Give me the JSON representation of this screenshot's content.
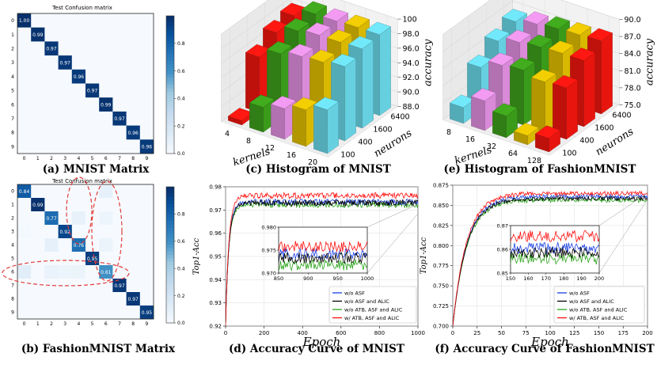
{
  "captions": {
    "a": "(a) MNIST Matrix",
    "b": "(b) FashionMNIST Matrix",
    "c": "(c) Histogram of MNIST",
    "d": "(d)  Accuracy Curve of  MNIST",
    "e": "(e) Histogram of FashionMNIST",
    "f": "(f)  Accuracy Curve of  FashionMNIST"
  },
  "colors": {
    "cm_high": "#08306b",
    "cm_low": "#f7fbff",
    "ellipse": "#e23a3a",
    "bar_red": "#e8150f",
    "bar_green": "#3a9a1a",
    "bar_pink": "#d98ad8",
    "bar_yellow": "#d9b800",
    "bar_cyan": "#66d0e0",
    "series_blue": "#1a3fe0",
    "series_black": "#000000",
    "series_green": "#2aa41a",
    "series_red": "#ff1010"
  },
  "chart_data": [
    {
      "id": "a",
      "type": "heatmap",
      "title": "Test Confusion matrix",
      "categories": [
        "0",
        "1",
        "2",
        "3",
        "4",
        "5",
        "6",
        "7",
        "8",
        "9"
      ],
      "diagonal": [
        1.0,
        0.99,
        0.97,
        0.97,
        0.96,
        0.97,
        0.99,
        0.97,
        0.96,
        0.96
      ],
      "diagonal_labels": [
        "1.00",
        "0.99",
        "0.97",
        "0.97",
        "0.96",
        "0.97",
        "0.99",
        "0.97",
        "0.96",
        "0.96"
      ],
      "colorbar_ticks": [
        "0.0",
        "0.2",
        "0.4",
        "0.6",
        "0.8"
      ],
      "colorbar_range": [
        0,
        1.0
      ]
    },
    {
      "id": "b",
      "type": "heatmap",
      "title": "Test Confusion matrix",
      "categories": [
        "0",
        "1",
        "2",
        "3",
        "4",
        "5",
        "6",
        "7",
        "8",
        "9"
      ],
      "diagonal": [
        0.84,
        0.99,
        0.77,
        0.92,
        0.76,
        0.95,
        0.61,
        0.97,
        0.97,
        0.95
      ],
      "diagonal_labels": [
        "0.84",
        "0.99",
        "0.77",
        "0.92",
        "0.76",
        "0.95",
        "0.61",
        "0.97",
        "0.97",
        "0.95"
      ],
      "off_diagonal": [
        {
          "row": 6,
          "col": 0,
          "value": 0.13
        },
        {
          "row": 6,
          "col": 2,
          "value": 0.08
        },
        {
          "row": 6,
          "col": 3,
          "value": 0.06
        },
        {
          "row": 6,
          "col": 4,
          "value": 0.07
        },
        {
          "row": 4,
          "col": 2,
          "value": 0.1
        },
        {
          "row": 2,
          "col": 4,
          "value": 0.09
        },
        {
          "row": 0,
          "col": 6,
          "value": 0.1
        },
        {
          "row": 3,
          "col": 0,
          "value": 0.03
        },
        {
          "row": 2,
          "col": 6,
          "value": 0.06
        },
        {
          "row": 4,
          "col": 6,
          "value": 0.07
        }
      ],
      "colorbar_ticks": [
        "0.0",
        "0.2",
        "0.4",
        "0.6",
        "0.8"
      ],
      "colorbar_range": [
        0,
        1.0
      ]
    },
    {
      "id": "c",
      "type": "bar3d",
      "xlabel": "kernels",
      "ylabel": "neurons",
      "zlabel": "accuracy",
      "kernels": [
        "4",
        "8",
        "12",
        "16",
        "20"
      ],
      "neurons": [
        "100",
        "400",
        "1600",
        "6400"
      ],
      "z_ticks": [
        "88.0",
        "90.0",
        "92.0",
        "94.0",
        "96.0",
        "98.0",
        "100"
      ],
      "z_range": [
        88,
        100
      ],
      "series": [
        {
          "name": "4",
          "color": "red",
          "values": [
            88.6,
            95.6,
            97.2,
            97.8
          ]
        },
        {
          "name": "8",
          "color": "green",
          "values": [
            91.4,
            97.0,
            98.4,
            99.0
          ]
        },
        {
          "name": "12",
          "color": "pink",
          "values": [
            92.2,
            97.6,
            98.8,
            99.0
          ]
        },
        {
          "name": "16",
          "color": "yellow",
          "values": [
            93.0,
            97.8,
            98.8,
            99.1
          ]
        },
        {
          "name": "20",
          "color": "cyan",
          "values": [
            94.0,
            98.2,
            98.9,
            99.1
          ]
        }
      ]
    },
    {
      "id": "d",
      "type": "line",
      "xlabel": "Epoch",
      "ylabel": "Top1-Acc",
      "xlim": [
        0,
        1000
      ],
      "ylim": [
        0.92,
        0.98
      ],
      "x_ticks": [
        "0",
        "200",
        "400",
        "600",
        "800",
        "1000"
      ],
      "y_ticks": [
        "0.92",
        "0.93",
        "0.94",
        "0.95",
        "0.96",
        "0.97",
        "0.98"
      ],
      "legend": [
        "w/o ASF",
        "w/o ASF and ALIC",
        "w/o ATB, ASF and ALIC",
        "w/ ATB, ASF and ALIC"
      ],
      "series_plateau": [
        0.9735,
        0.973,
        0.9722,
        0.9762
      ],
      "inset": {
        "xlim": [
          850,
          1000
        ],
        "ylim": [
          0.97,
          0.98
        ],
        "x_ticks": [
          "850",
          "900",
          "950",
          "1000"
        ],
        "y_ticks": [
          "0.970",
          "0.975",
          "0.980"
        ],
        "series_levels": [
          0.9742,
          0.9733,
          0.9718,
          0.9758
        ]
      }
    },
    {
      "id": "e",
      "type": "bar3d",
      "xlabel": "kernels",
      "ylabel": "neurons",
      "zlabel": "accuracy",
      "kernels": [
        "8",
        "16",
        "32",
        "64",
        "128"
      ],
      "neurons": [
        "100",
        "400",
        "1600",
        "6400"
      ],
      "z_ticks": [
        "75.0",
        "78.0",
        "81.0",
        "84.0",
        "87.0",
        "90.0"
      ],
      "z_range": [
        75,
        90
      ],
      "series": [
        {
          "name": "8",
          "color": "cyan",
          "values": [
            77.8,
            82.6,
            85.0,
            86.2
          ]
        },
        {
          "name": "16",
          "color": "pink",
          "values": [
            80.2,
            84.2,
            86.0,
            87.0
          ]
        },
        {
          "name": "32",
          "color": "green",
          "values": [
            78.8,
            84.6,
            86.4,
            87.4
          ]
        },
        {
          "name": "64",
          "color": "yellow",
          "values": [
            76.6,
            83.8,
            86.6,
            87.6
          ]
        },
        {
          "name": "128",
          "color": "red",
          "values": [
            77.4,
            84.0,
            86.6,
            87.8
          ]
        }
      ]
    },
    {
      "id": "f",
      "type": "line",
      "xlabel": "Epoch",
      "ylabel": "Top1-Acc",
      "xlim": [
        0,
        200
      ],
      "ylim": [
        0.7,
        0.875
      ],
      "x_ticks": [
        "0",
        "25",
        "50",
        "75",
        "100",
        "125",
        "150",
        "175",
        "200"
      ],
      "y_ticks": [
        "0.700",
        "0.725",
        "0.750",
        "0.775",
        "0.800",
        "0.825",
        "0.850",
        "0.875"
      ],
      "legend": [
        "w/o ASF",
        "w/o ASF and ALIC",
        "w/o ATB, ASF and ALIC",
        "w/ ATB, ASF and ALIC"
      ],
      "series_plateau": [
        0.861,
        0.8585,
        0.8565,
        0.865
      ],
      "inset": {
        "xlim": [
          150,
          200
        ],
        "ylim": [
          0.85,
          0.87
        ],
        "x_ticks": [
          "150",
          "160",
          "170",
          "180",
          "190",
          "200"
        ],
        "y_ticks": [
          "0.85",
          "0.86",
          "0.87"
        ],
        "series_levels": [
          0.8605,
          0.8585,
          0.856,
          0.8655
        ]
      }
    }
  ]
}
